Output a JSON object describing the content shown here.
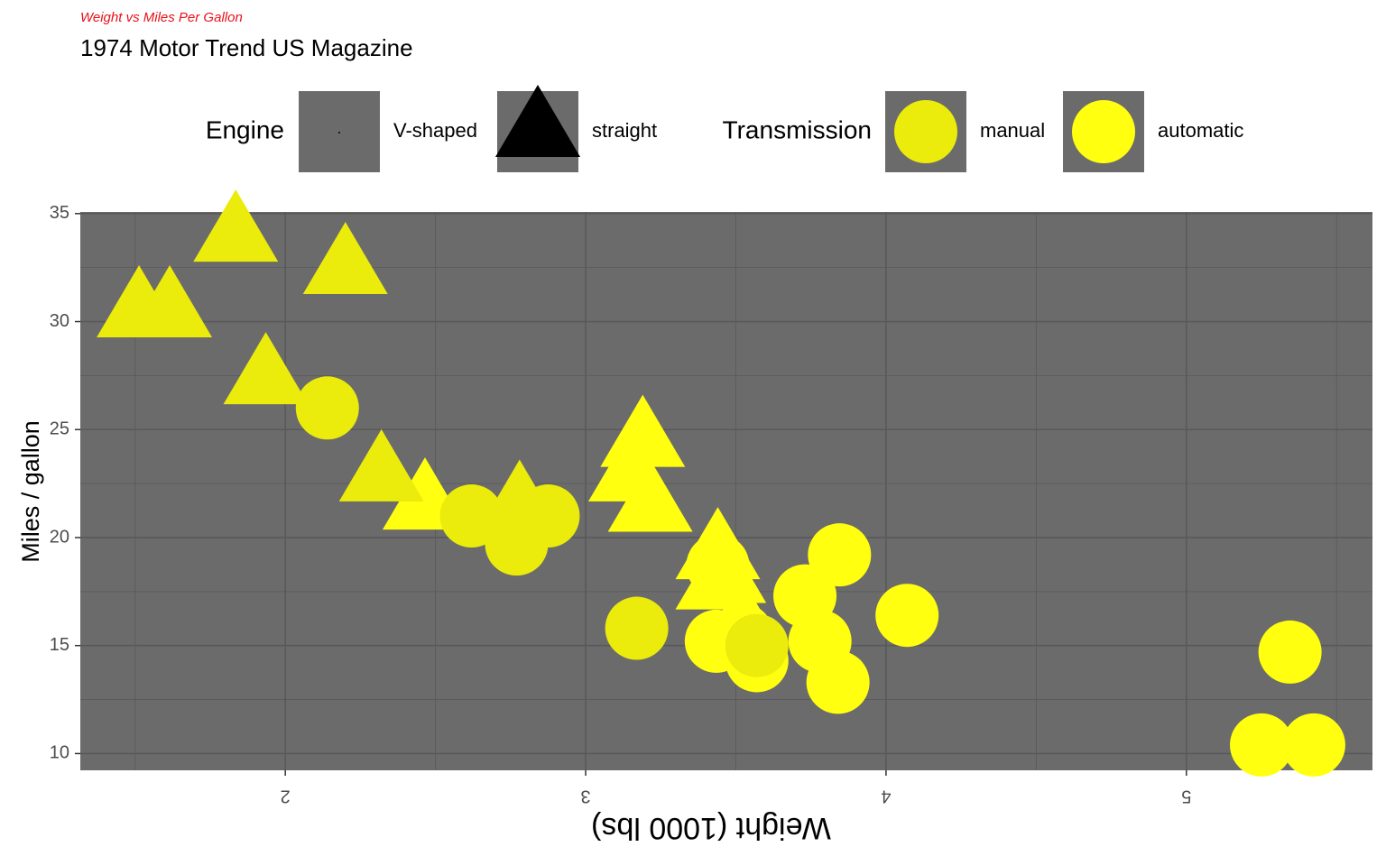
{
  "chart_data": {
    "type": "scatter",
    "title": "Weight vs Miles Per Gallon",
    "subtitle": "1974 Motor Trend US Magazine",
    "x_label": "Weight (1000 lbs)",
    "y_label": "Miles / gallon",
    "xlim": [
      1.3175,
      5.6195
    ],
    "ylim": [
      9.225,
      35.075
    ],
    "xticks": [
      2,
      3,
      4,
      5
    ],
    "yticks": [
      10,
      15,
      20,
      25,
      30,
      35
    ],
    "xminor": [
      1.5,
      2.5,
      3.5,
      4.5,
      5.5
    ],
    "yminor": [
      12.5,
      17.5,
      22.5,
      27.5,
      32.5
    ],
    "panel_color": "#6b6b6b",
    "grid_color": "#595959",
    "legend": {
      "shape": {
        "title": "Engine",
        "items": [
          {
            "label": "V-shaped",
            "shape": "circle"
          },
          {
            "label": "straight",
            "shape": "triangle"
          }
        ]
      },
      "color": {
        "title": "Transmission",
        "items": [
          {
            "label": "manual",
            "color": "#ebeb0c"
          },
          {
            "label": "automatic",
            "color": "#ffff0f"
          }
        ]
      }
    },
    "series": [
      {
        "shape": "circle",
        "color": "#ffff0f",
        "x": [
          3.44,
          3.57,
          4.07,
          3.73,
          3.78,
          5.25,
          5.424,
          5.345,
          3.52,
          3.435,
          3.84,
          3.845
        ],
        "y": [
          18.7,
          14.3,
          16.4,
          17.3,
          15.2,
          10.4,
          10.4,
          14.7,
          15.5,
          15.2,
          13.3,
          19.2
        ]
      },
      {
        "shape": "triangle",
        "color": "#ffff0f",
        "x": [
          3.215,
          3.46,
          3.19,
          3.15,
          3.44,
          3.44,
          2.465
        ],
        "y": [
          21.4,
          18.1,
          24.4,
          22.8,
          19.2,
          17.8,
          21.5
        ]
      },
      {
        "shape": "circle",
        "color": "#ebeb0c",
        "x": [
          2.62,
          2.875,
          2.14,
          3.17,
          2.77,
          3.57
        ],
        "y": [
          21.0,
          21.0,
          26.0,
          15.8,
          19.7,
          15.0
        ]
      },
      {
        "shape": "triangle",
        "color": "#ebeb0c",
        "x": [
          2.32,
          2.2,
          1.615,
          1.835,
          1.935,
          1.513,
          2.78
        ],
        "y": [
          22.8,
          32.4,
          30.4,
          33.9,
          27.3,
          30.4,
          21.4
        ]
      }
    ]
  }
}
